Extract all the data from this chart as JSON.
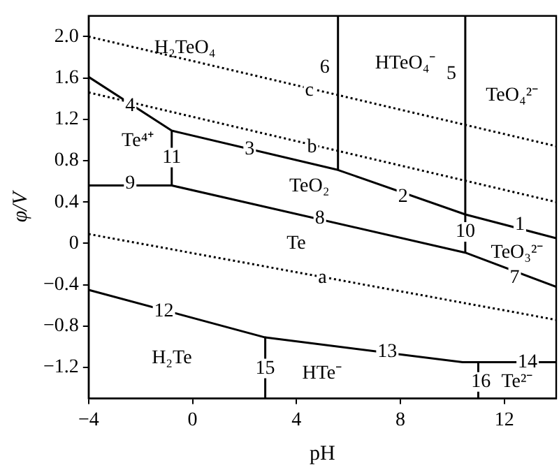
{
  "chart_data": {
    "type": "line",
    "xlabel": "pH",
    "ylabel": "φ/V",
    "xlim": [
      -4,
      14
    ],
    "ylim": [
      -1.5,
      2.2
    ],
    "xticks": [
      {
        "value": -4,
        "label": "−4"
      },
      0,
      4,
      8,
      12
    ],
    "yticks": [
      {
        "value": -1.2,
        "label": "−1.2"
      },
      {
        "value": -0.8,
        "label": "−0.8"
      },
      {
        "value": -0.4,
        "label": "−0.4"
      },
      0,
      0.4,
      0.8,
      1.2,
      1.6,
      {
        "value": 2.0,
        "label": "2.0"
      }
    ],
    "grid": false,
    "legend": false,
    "marker": "none",
    "series": [
      {
        "color": "#000000",
        "line_style": "dotted",
        "x": [
          -4,
          14
        ],
        "values": [
          2.0,
          0.94
        ]
      },
      {
        "color": "#000000",
        "line_style": "dotted",
        "x": [
          -4,
          14
        ],
        "values": [
          1.46,
          0.4
        ]
      },
      {
        "color": "#000000",
        "line_style": "dotted",
        "x": [
          -4,
          14
        ],
        "values": [
          0.09,
          -0.74
        ]
      },
      {
        "color": "#000000",
        "line_style": "solid",
        "x": [
          -4,
          -0.8,
          5.6,
          10.5,
          14
        ],
        "values": [
          1.61,
          1.09,
          0.71,
          0.28,
          0.05
        ]
      },
      {
        "color": "#000000",
        "line_style": "solid",
        "x": [
          5.6,
          5.6
        ],
        "values": [
          0.71,
          2.2
        ]
      },
      {
        "color": "#000000",
        "line_style": "solid",
        "x": [
          10.5,
          10.5
        ],
        "values": [
          -0.09,
          2.2
        ]
      },
      {
        "color": "#000000",
        "line_style": "solid",
        "x": [
          -4,
          -0.8,
          -0.8
        ],
        "values": [
          0.56,
          0.56,
          1.09
        ]
      },
      {
        "color": "#000000",
        "line_style": "solid",
        "x": [
          -0.8,
          10.5,
          14
        ],
        "values": [
          0.56,
          -0.09,
          -0.42
        ]
      },
      {
        "color": "#000000",
        "line_style": "solid",
        "x": [
          -4,
          2.8,
          10.4,
          14
        ],
        "values": [
          -0.45,
          -0.91,
          -1.15,
          -1.15
        ]
      },
      {
        "color": "#000000",
        "line_style": "solid",
        "x": [
          2.8,
          2.8
        ],
        "values": [
          -0.91,
          -1.5
        ]
      },
      {
        "color": "#000000",
        "line_style": "solid",
        "x": [
          11.0,
          11.0
        ],
        "values": [
          -1.15,
          -1.5
        ]
      }
    ],
    "annotations": [
      "H₂TeO₄",
      "6",
      "HTeO₄⁻",
      "5",
      "TeO₄²⁻",
      {
        "text": "c",
        "x": 4.5,
        "y": 1.48
      },
      {
        "text": "4",
        "x": -2.4,
        "y": 1.33
      },
      "Te⁴⁺",
      {
        "text": "11",
        "x": -0.8,
        "y": 0.83
      },
      {
        "text": "3",
        "x": 2.2,
        "y": 0.91
      },
      {
        "text": "b",
        "x": 4.6,
        "y": 0.93
      },
      {
        "text": "9",
        "x": -2.4,
        "y": 0.58
      },
      "TeO₂",
      {
        "text": "2",
        "x": 8.1,
        "y": 0.45
      },
      {
        "text": "8",
        "x": 4.9,
        "y": 0.24
      },
      {
        "text": "10",
        "x": 10.5,
        "y": 0.11
      },
      {
        "text": "1",
        "x": 12.6,
        "y": 0.18
      },
      "Te",
      "TeO₃²⁻",
      {
        "text": "7",
        "x": 12.4,
        "y": -0.33
      },
      {
        "text": "a",
        "x": 5.0,
        "y": -0.33
      },
      {
        "text": "12",
        "x": -1.1,
        "y": -0.66
      },
      {
        "text": "13",
        "x": 7.5,
        "y": -1.05
      },
      {
        "text": "14",
        "x": 12.9,
        "y": -1.15
      },
      "H₂Te",
      {
        "text": "15",
        "x": 2.8,
        "y": -1.21
      },
      "HTe⁻",
      {
        "text": "16",
        "x": 11.1,
        "y": -1.34
      },
      "Te²⁻"
    ]
  }
}
